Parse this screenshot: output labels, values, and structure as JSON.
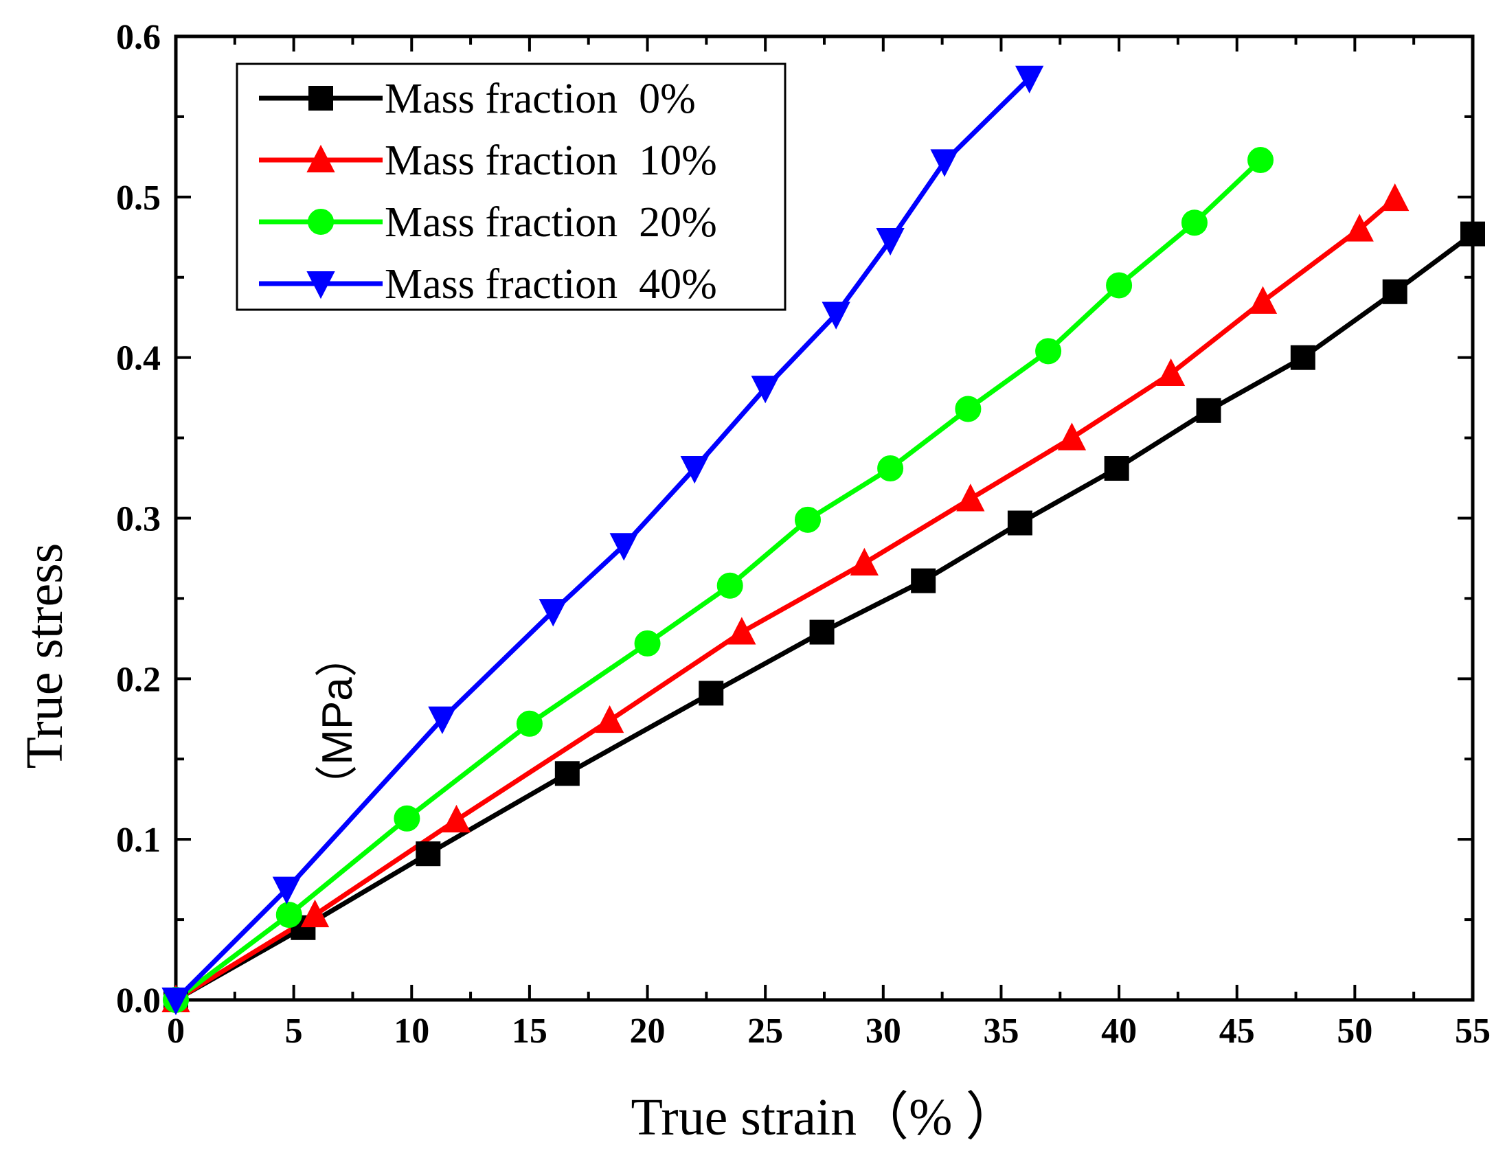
{
  "chart_data": {
    "type": "line",
    "title": "",
    "xlabel": "True strain（%  ）",
    "ylabel": "True stress",
    "ylabel_unit": "（MPa）",
    "xlim": [
      0,
      55
    ],
    "ylim": [
      0,
      0.6
    ],
    "xticks": [
      0,
      5,
      10,
      15,
      20,
      25,
      30,
      35,
      40,
      45,
      50,
      55
    ],
    "yticks": [
      0.0,
      0.1,
      0.2,
      0.3,
      0.4,
      0.5,
      0.6
    ],
    "ytick_labels": [
      "0.0",
      "0.1",
      "0.2",
      "0.3",
      "0.4",
      "0.5",
      "0.6"
    ],
    "legend_position": "top-left",
    "series": [
      {
        "name": "Mass fraction  0%",
        "color": "#000000",
        "marker": "square",
        "x": [
          0,
          5.4,
          10.7,
          16.6,
          22.7,
          27.4,
          31.7,
          35.8,
          39.9,
          43.8,
          47.8,
          51.7,
          55
        ],
        "y": [
          0,
          0.045,
          0.091,
          0.141,
          0.191,
          0.229,
          0.261,
          0.297,
          0.331,
          0.367,
          0.4,
          0.441,
          0.477
        ]
      },
      {
        "name": "Mass fraction  10%",
        "color": "#ff0000",
        "marker": "triangle-up",
        "x": [
          0,
          5.9,
          11.9,
          18.4,
          24.0,
          29.2,
          33.7,
          38.0,
          42.2,
          46.1,
          50.2,
          51.7
        ],
        "y": [
          0,
          0.053,
          0.112,
          0.174,
          0.229,
          0.272,
          0.312,
          0.35,
          0.39,
          0.435,
          0.48,
          0.499
        ]
      },
      {
        "name": "Mass fraction  20%",
        "color": "#00ff00",
        "marker": "circle",
        "x": [
          0,
          4.8,
          9.8,
          15.0,
          20.0,
          23.5,
          26.8,
          30.3,
          33.6,
          37.0,
          40.0,
          43.2,
          46.0
        ],
        "y": [
          0,
          0.053,
          0.113,
          0.172,
          0.222,
          0.258,
          0.299,
          0.331,
          0.368,
          0.404,
          0.445,
          0.484,
          0.523
        ]
      },
      {
        "name": "Mass fraction  40%",
        "color": "#0000ff",
        "marker": "triangle-down",
        "x": [
          0,
          4.7,
          11.3,
          16.0,
          19.0,
          22.0,
          25.0,
          28.0,
          30.3,
          32.6,
          36.2
        ],
        "y": [
          0,
          0.069,
          0.175,
          0.242,
          0.283,
          0.331,
          0.381,
          0.427,
          0.473,
          0.522,
          0.574
        ]
      }
    ]
  }
}
